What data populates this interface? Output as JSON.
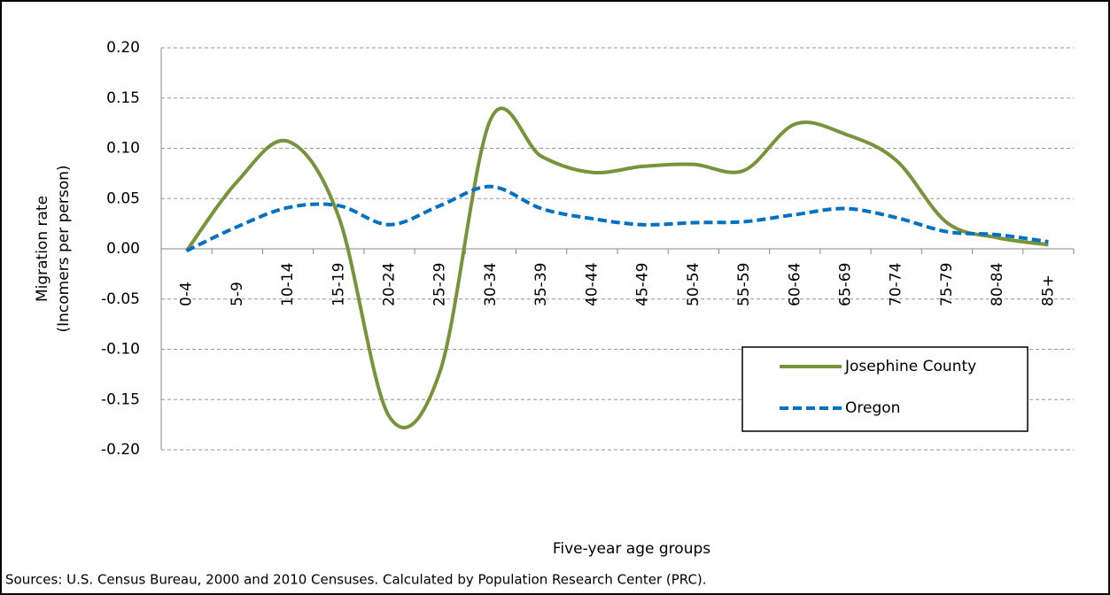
{
  "chart_data": {
    "type": "line",
    "smooth": true,
    "x_label": "Five-year age groups",
    "y_label": [
      "Migration rate",
      "(Incomers per person)"
    ],
    "source": "Sources: U.S. Census Bureau, 2000 and 2010 Censuses. Calculated by Population Research  Center (PRC).",
    "categories": [
      "0-4",
      "5-9",
      "10-14",
      "15-19",
      "20-24",
      "25-29",
      "30-34",
      "35-39",
      "40-44",
      "45-49",
      "50-54",
      "55-59",
      "60-64",
      "65-69",
      "70-74",
      "75-79",
      "80-84",
      "85+"
    ],
    "series": [
      {
        "name": "Josephine County",
        "color": "#77933c",
        "dashed": false,
        "values": [
          -0.002,
          0.067,
          0.107,
          0.032,
          -0.167,
          -0.122,
          0.129,
          0.092,
          0.076,
          0.082,
          0.084,
          0.078,
          0.124,
          0.114,
          0.088,
          0.026,
          0.011,
          0.004
        ]
      },
      {
        "name": "Oregon",
        "color": "#0070c0",
        "dashed": true,
        "values": [
          -0.002,
          0.022,
          0.041,
          0.043,
          0.024,
          0.043,
          0.062,
          0.04,
          0.03,
          0.024,
          0.026,
          0.027,
          0.034,
          0.04,
          0.031,
          0.017,
          0.014,
          0.007
        ]
      }
    ],
    "ylim": [
      -0.2,
      0.2
    ],
    "yticks": [
      {
        "value": -0.2,
        "label": "-0.20"
      },
      {
        "value": -0.15,
        "label": "-0.15"
      },
      {
        "value": -0.1,
        "label": "-0.10"
      },
      {
        "value": -0.05,
        "label": "-0.05"
      },
      {
        "value": 0,
        "label": "0.00"
      },
      {
        "value": 0.05,
        "label": "0.05"
      },
      {
        "value": 0.1,
        "label": "0.10"
      },
      {
        "value": 0.15,
        "label": "0.15"
      },
      {
        "value": 0.2,
        "label": "0.20"
      }
    ],
    "grid": true,
    "legend": "lower-right"
  }
}
